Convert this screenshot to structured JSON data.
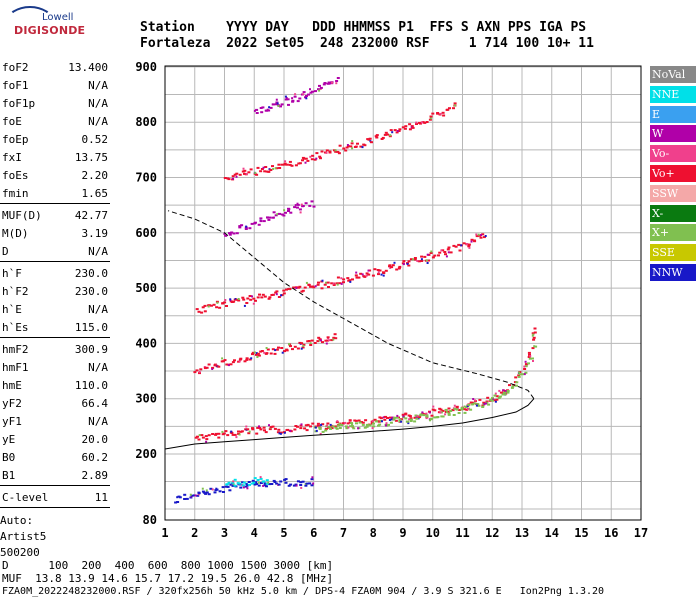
{
  "logo": {
    "top": "Lowell",
    "bottom": "DIGISONDE"
  },
  "header": {
    "line1": "Station    YYYY DAY   DDD HHMMSS P1  FFS S AXN PPS IGA PS",
    "line2": "Fortaleza  2022 Set05  248 232000 RSF     1 714 100 10+ 11"
  },
  "params_group1": [
    {
      "label": "foF2",
      "value": "13.400"
    },
    {
      "label": "foF1",
      "value": "N/A"
    },
    {
      "label": "foF1p",
      "value": "N/A"
    },
    {
      "label": "foE",
      "value": "N/A"
    },
    {
      "label": "foEp",
      "value": "0.52"
    },
    {
      "label": "fxI",
      "value": "13.75"
    },
    {
      "label": "foEs",
      "value": "2.20"
    },
    {
      "label": "fmin",
      "value": "1.65"
    }
  ],
  "params_group2": [
    {
      "label": "MUF(D)",
      "value": "42.77"
    },
    {
      "label": "M(D)",
      "value": "3.19"
    },
    {
      "label": "D",
      "value": "N/A"
    }
  ],
  "params_group3": [
    {
      "label": "h`F",
      "value": "230.0"
    },
    {
      "label": "h`F2",
      "value": "230.0"
    },
    {
      "label": "h`E",
      "value": "N/A"
    },
    {
      "label": "h`Es",
      "value": "115.0"
    }
  ],
  "params_group4": [
    {
      "label": "hmF2",
      "value": "300.9"
    },
    {
      "label": "hmF1",
      "value": "N/A"
    },
    {
      "label": "hmE",
      "value": "110.0"
    },
    {
      "label": "yF2",
      "value": "66.4"
    },
    {
      "label": "yF1",
      "value": "N/A"
    },
    {
      "label": "yE",
      "value": "20.0"
    },
    {
      "label": "B0",
      "value": "60.2"
    },
    {
      "label": "B1",
      "value": "2.89"
    }
  ],
  "clevel": {
    "label": "C-level",
    "value": "11"
  },
  "auto": {
    "line1": "Auto:",
    "line2": "Artist5",
    "line3": "500200"
  },
  "legend": [
    {
      "label": "NoVal",
      "color": "#888888"
    },
    {
      "label": "NNE",
      "color": "#00e0e8"
    },
    {
      "label": "E",
      "color": "#3aa0f0"
    },
    {
      "label": "W",
      "color": "#b000a8"
    },
    {
      "label": "Vo-",
      "color": "#f0408c"
    },
    {
      "label": "Vo+",
      "color": "#ee1030"
    },
    {
      "label": "SSW",
      "color": "#f4a8a8"
    },
    {
      "label": "X-",
      "color": "#0a7a10"
    },
    {
      "label": "X+",
      "color": "#80c050"
    },
    {
      "label": "SSE",
      "color": "#c8c800"
    },
    {
      "label": "NNW",
      "color": "#1818c8"
    }
  ],
  "bottom": {
    "d_line": "D      100  200  400  600  800 1000 1500 3000 [km]",
    "muf_line": "MUF  13.8 13.9 14.6 15.7 17.2 19.5 26.0 42.8 [MHz]",
    "info_line": "FZA0M_2022248232000.RSF / 320fx256h 50 kHz 5.0 km / DPS-4 FZA0M 904 / 3.9 S 321.6 E   Ion2Png 1.3.20"
  },
  "chart_data": {
    "type": "scatter",
    "xlabel": "",
    "ylabel": "",
    "xlim": [
      1,
      17
    ],
    "ylim": [
      80,
      900
    ],
    "x_ticks": [
      "1",
      "2",
      "3",
      "4",
      "5",
      "6",
      "7",
      "8",
      "9",
      "10",
      "11",
      "12",
      "13",
      "14",
      "15",
      "16",
      "17"
    ],
    "y_ticks": [
      "80",
      "200",
      "300",
      "400",
      "500",
      "600",
      "700",
      "800",
      "900"
    ],
    "grid": true,
    "series": [
      {
        "kind": "trace",
        "color": "#ee1030",
        "points": [
          [
            2.0,
            232
          ],
          [
            3,
            238
          ],
          [
            4,
            243
          ],
          [
            5,
            247
          ],
          [
            6,
            251
          ],
          [
            7,
            256
          ],
          [
            8,
            262
          ],
          [
            9,
            268
          ],
          [
            10,
            276
          ],
          [
            11,
            287
          ],
          [
            11.8,
            298
          ],
          [
            12.3,
            312
          ],
          [
            12.7,
            330
          ],
          [
            13.0,
            352
          ],
          [
            13.2,
            380
          ],
          [
            13.35,
            410
          ],
          [
            13.4,
            440
          ]
        ]
      },
      {
        "kind": "trace",
        "color": "#80c050",
        "points": [
          [
            6,
            246
          ],
          [
            7,
            251
          ],
          [
            8,
            257
          ],
          [
            9,
            263
          ],
          [
            10,
            271
          ],
          [
            11,
            282
          ],
          [
            12,
            300
          ],
          [
            12.8,
            330
          ],
          [
            13.2,
            360
          ],
          [
            13.45,
            400
          ]
        ]
      },
      {
        "kind": "trace",
        "color": "#ee1030",
        "points": [
          [
            2.0,
            460
          ],
          [
            3,
            475
          ],
          [
            4,
            484
          ],
          [
            5,
            494
          ],
          [
            6,
            505
          ],
          [
            7,
            517
          ],
          [
            8,
            530
          ],
          [
            9,
            545
          ],
          [
            10,
            560
          ],
          [
            11,
            578
          ],
          [
            11.8,
            598
          ]
        ]
      },
      {
        "kind": "trace",
        "color": "#ee1030",
        "points": [
          [
            3.0,
            700
          ],
          [
            4,
            712
          ],
          [
            5,
            725
          ],
          [
            6,
            740
          ],
          [
            7,
            755
          ],
          [
            8,
            772
          ],
          [
            9,
            790
          ],
          [
            10,
            812
          ],
          [
            10.8,
            835
          ]
        ]
      },
      {
        "kind": "trace",
        "color": "#b000a8",
        "points": [
          [
            3.0,
            600
          ],
          [
            3.5,
            610
          ],
          [
            4,
            620
          ],
          [
            4.5,
            630
          ],
          [
            5,
            640
          ],
          [
            5.5,
            648
          ],
          [
            6,
            655
          ]
        ]
      },
      {
        "kind": "trace",
        "color": "#ee1030",
        "points": [
          [
            2.0,
            350
          ],
          [
            3,
            366
          ],
          [
            4,
            380
          ],
          [
            5,
            393
          ],
          [
            6,
            405
          ],
          [
            6.8,
            415
          ]
        ]
      },
      {
        "kind": "trace",
        "color": "#1818c8",
        "points": [
          [
            1.3,
            118
          ],
          [
            2,
            128
          ],
          [
            3,
            140
          ],
          [
            4,
            148
          ],
          [
            5,
            150
          ],
          [
            6,
            150
          ]
        ]
      },
      {
        "kind": "trace",
        "color": "#00e0e8",
        "points": [
          [
            3.0,
            145
          ],
          [
            3.5,
            150
          ],
          [
            4,
            152
          ],
          [
            4.5,
            150
          ]
        ]
      },
      {
        "kind": "trace",
        "color": "#b000a8",
        "points": [
          [
            4.0,
            820
          ],
          [
            5,
            838
          ],
          [
            6,
            858
          ],
          [
            6.8,
            880
          ]
        ]
      }
    ],
    "profile_solid": [
      [
        1,
        209
      ],
      [
        2,
        218
      ],
      [
        3,
        222
      ],
      [
        4,
        226
      ],
      [
        5,
        230
      ],
      [
        6,
        234
      ],
      [
        7,
        237
      ],
      [
        8,
        241
      ],
      [
        9,
        245
      ],
      [
        10,
        250
      ],
      [
        11,
        256
      ],
      [
        12,
        266
      ],
      [
        12.8,
        276
      ],
      [
        13.2,
        288
      ],
      [
        13.4,
        300
      ]
    ],
    "profile_dashed": [
      [
        13.4,
        300
      ],
      [
        13.2,
        315
      ],
      [
        12.5,
        330
      ],
      [
        11.5,
        345
      ],
      [
        10,
        365
      ],
      [
        8.5,
        400
      ],
      [
        7,
        445
      ],
      [
        6,
        475
      ],
      [
        5,
        510
      ],
      [
        4,
        555
      ],
      [
        3,
        600
      ],
      [
        2,
        625
      ],
      [
        1.1,
        640
      ]
    ]
  }
}
